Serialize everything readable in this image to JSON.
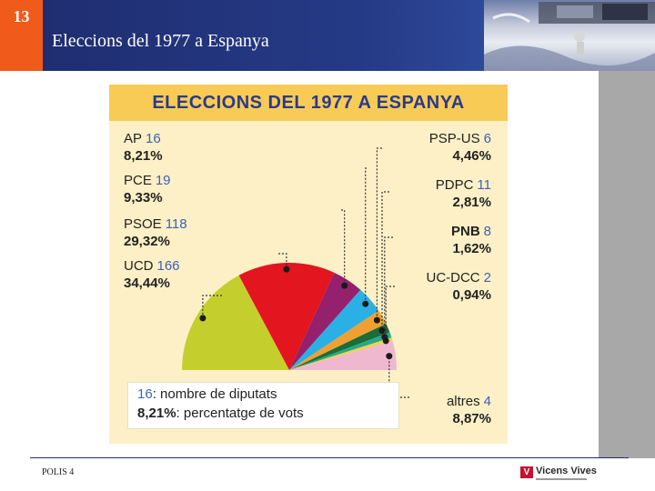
{
  "header": {
    "slide_number": "13",
    "title": "Eleccions del 1977 a Espanya"
  },
  "footer": {
    "text": "POLIS 4",
    "brand": "Vicens Vives",
    "brand_mark": "V"
  },
  "colors": {
    "header_blue": "#253a86",
    "accent_orange": "#f05a1a",
    "figure_bg": "#fdf0c6",
    "title_bar": "#f7cb55",
    "title_text": "#2b3a8c",
    "seats_blue": "#3b62b8"
  },
  "chart_data": {
    "type": "pie",
    "title": "ELECCIONS DEL 1977 A ESPANYA",
    "layout": "semicircle",
    "slices": [
      {
        "party": "UCD",
        "seats": "166",
        "pct": "34,44%",
        "value": 34.44,
        "color": "#c4cf2e"
      },
      {
        "party": "PSOE",
        "seats": "118",
        "pct": "29,32%",
        "value": 29.32,
        "color": "#e3151f"
      },
      {
        "party": "PCE",
        "seats": "19",
        "pct": "9,33%",
        "value": 9.33,
        "color": "#94206e"
      },
      {
        "party": "AP",
        "seats": "16",
        "pct": "8,21%",
        "value": 8.21,
        "color": "#2ab0e4"
      },
      {
        "party": "PSP-US",
        "seats": "6",
        "pct": "4,46%",
        "value": 4.46,
        "color": "#f0a032"
      },
      {
        "party": "PDPC",
        "seats": "11",
        "pct": "2,81%",
        "value": 2.81,
        "color": "#1b6d3a"
      },
      {
        "party": "PNB",
        "seats": "8",
        "pct": "1,62%",
        "value": 1.62,
        "color": "#26a88a"
      },
      {
        "party": "UC-DCC",
        "seats": "2",
        "pct": "0,94%",
        "value": 0.94,
        "color": "#f4d33a"
      },
      {
        "party": "altres",
        "seats": "4",
        "pct": "8,87%",
        "value": 8.87,
        "color": "#f0b8cf"
      }
    ],
    "legend": {
      "seats_example": "16",
      "seats_desc": ": nombre de diputats",
      "pct_example": "8,21%",
      "pct_desc": ": percentatge de vots"
    }
  }
}
